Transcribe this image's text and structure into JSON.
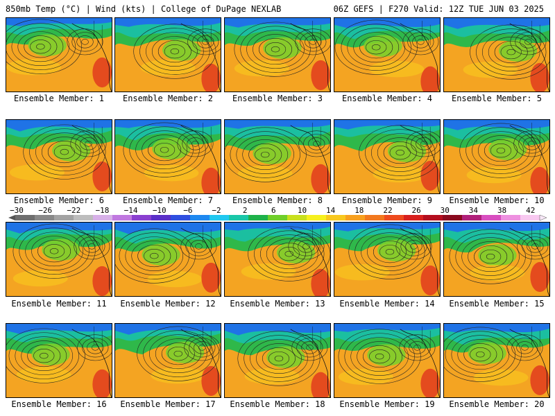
{
  "header": {
    "left": "850mb Temp (°C) | Wind (kts) | College of DuPage NEXLAB",
    "right": "06Z GEFS | F270 Valid: 12Z TUE JUN 03 2025"
  },
  "members": [
    {
      "label": "Ensemble Member: 1"
    },
    {
      "label": "Ensemble Member: 2"
    },
    {
      "label": "Ensemble Member: 3"
    },
    {
      "label": "Ensemble Member: 4"
    },
    {
      "label": "Ensemble Member: 5"
    },
    {
      "label": "Ensemble Member: 6"
    },
    {
      "label": "Ensemble Member: 7"
    },
    {
      "label": "Ensemble Member: 8"
    },
    {
      "label": "Ensemble Member: 9"
    },
    {
      "label": "Ensemble Member: 10"
    },
    {
      "label": "Ensemble Member: 11"
    },
    {
      "label": "Ensemble Member: 12"
    },
    {
      "label": "Ensemble Member: 13"
    },
    {
      "label": "Ensemble Member: 14"
    },
    {
      "label": "Ensemble Member: 15"
    },
    {
      "label": "Ensemble Member: 16"
    },
    {
      "label": "Ensemble Member: 17"
    },
    {
      "label": "Ensemble Member: 18"
    },
    {
      "label": "Ensemble Member: 19"
    },
    {
      "label": "Ensemble Member: 20"
    }
  ],
  "colorbar": {
    "ticks": [
      "−30",
      "−26",
      "−22",
      "−18",
      "−14",
      "−10",
      "−6",
      "−2",
      "2",
      "6",
      "10",
      "14",
      "18",
      "22",
      "26",
      "30",
      "34",
      "38",
      "42"
    ],
    "colors": [
      "#6e6e6e",
      "#888888",
      "#a3a3a3",
      "#bdbdbd",
      "#d7b0e8",
      "#c078e0",
      "#8a3fd0",
      "#5a2fc8",
      "#2f4fe0",
      "#1e88f0",
      "#20c8f0",
      "#19c7a8",
      "#1eb24a",
      "#6fcf2a",
      "#c8e01e",
      "#f6f01e",
      "#f8c81e",
      "#f8a01e",
      "#f2781e",
      "#ee4a1e",
      "#d8201e",
      "#b40e1e",
      "#8a0a1e",
      "#b0207a",
      "#d84ec0",
      "#ee90e0",
      "#f8c8f0"
    ]
  }
}
